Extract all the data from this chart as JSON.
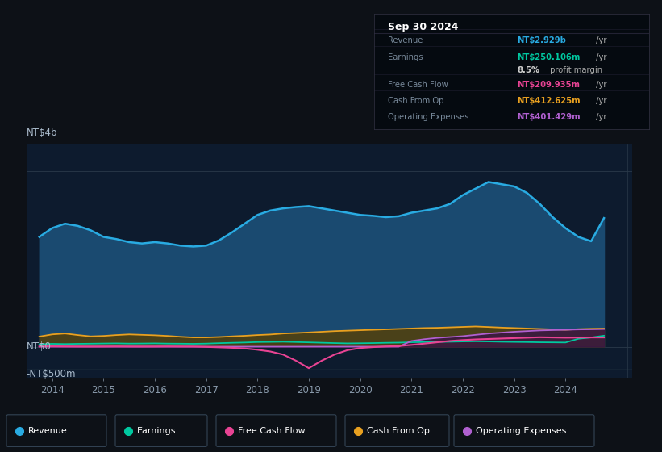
{
  "bg_color": "#0d1117",
  "plot_bg_color": "#0d1b2e",
  "title": "Sep 30 2024",
  "ytick_labels": [
    "NT$4b",
    "NT$0",
    "-NT$500m"
  ],
  "ytick_values": [
    4000,
    0,
    -500
  ],
  "ylim": [
    -700,
    4600
  ],
  "xlim": [
    2013.5,
    2025.3
  ],
  "xtick_years": [
    2014,
    2015,
    2016,
    2017,
    2018,
    2019,
    2020,
    2021,
    2022,
    2023,
    2024
  ],
  "legend_items": [
    {
      "label": "Revenue",
      "color": "#29abe2"
    },
    {
      "label": "Earnings",
      "color": "#00c8a0"
    },
    {
      "label": "Free Cash Flow",
      "color": "#e84393"
    },
    {
      "label": "Cash From Op",
      "color": "#e8a020"
    },
    {
      "label": "Operating Expenses",
      "color": "#b060d0"
    }
  ],
  "series": {
    "revenue": {
      "color": "#29abe2",
      "fill_color": "#1a4a70",
      "x": [
        2013.75,
        2014.0,
        2014.25,
        2014.5,
        2014.75,
        2015.0,
        2015.25,
        2015.5,
        2015.75,
        2016.0,
        2016.25,
        2016.5,
        2016.75,
        2017.0,
        2017.25,
        2017.5,
        2017.75,
        2018.0,
        2018.25,
        2018.5,
        2018.75,
        2019.0,
        2019.25,
        2019.5,
        2019.75,
        2020.0,
        2020.25,
        2020.5,
        2020.75,
        2021.0,
        2021.25,
        2021.5,
        2021.75,
        2022.0,
        2022.25,
        2022.5,
        2022.75,
        2023.0,
        2023.25,
        2023.5,
        2023.75,
        2024.0,
        2024.25,
        2024.5,
        2024.75
      ],
      "y": [
        2500,
        2700,
        2800,
        2750,
        2650,
        2500,
        2450,
        2380,
        2350,
        2380,
        2350,
        2300,
        2280,
        2300,
        2420,
        2600,
        2800,
        3000,
        3100,
        3150,
        3180,
        3200,
        3150,
        3100,
        3050,
        3000,
        2980,
        2950,
        2970,
        3050,
        3100,
        3150,
        3250,
        3450,
        3600,
        3750,
        3700,
        3650,
        3500,
        3250,
        2950,
        2700,
        2500,
        2400,
        2929
      ]
    },
    "earnings": {
      "color": "#00c8a0",
      "fill_color": "#003830",
      "x": [
        2013.75,
        2014.0,
        2014.25,
        2014.5,
        2014.75,
        2015.0,
        2015.25,
        2015.5,
        2015.75,
        2016.0,
        2016.25,
        2016.5,
        2016.75,
        2017.0,
        2017.25,
        2017.5,
        2017.75,
        2018.0,
        2018.25,
        2018.5,
        2018.75,
        2019.0,
        2019.25,
        2019.5,
        2019.75,
        2020.0,
        2020.25,
        2020.5,
        2020.75,
        2021.0,
        2021.25,
        2021.5,
        2021.75,
        2022.0,
        2022.25,
        2022.5,
        2022.75,
        2023.0,
        2023.25,
        2023.5,
        2023.75,
        2024.0,
        2024.25,
        2024.5,
        2024.75
      ],
      "y": [
        55,
        65,
        60,
        65,
        68,
        72,
        75,
        70,
        72,
        75,
        70,
        68,
        65,
        70,
        80,
        88,
        95,
        105,
        108,
        112,
        105,
        98,
        90,
        82,
        75,
        78,
        82,
        88,
        92,
        100,
        105,
        108,
        112,
        118,
        122,
        118,
        112,
        108,
        105,
        100,
        98,
        95,
        180,
        210,
        250
      ]
    },
    "free_cash_flow": {
      "color": "#e84393",
      "x": [
        2013.75,
        2014.0,
        2014.25,
        2014.5,
        2014.75,
        2015.0,
        2015.25,
        2015.5,
        2015.75,
        2016.0,
        2016.25,
        2016.5,
        2016.75,
        2017.0,
        2017.25,
        2017.5,
        2017.75,
        2018.0,
        2018.25,
        2018.5,
        2018.75,
        2019.0,
        2019.25,
        2019.5,
        2019.75,
        2020.0,
        2020.25,
        2020.5,
        2020.75,
        2021.0,
        2021.25,
        2021.5,
        2021.75,
        2022.0,
        2022.25,
        2022.5,
        2022.75,
        2023.0,
        2023.25,
        2023.5,
        2023.75,
        2024.0,
        2024.25,
        2024.5,
        2024.75
      ],
      "y": [
        5,
        8,
        5,
        3,
        2,
        3,
        5,
        3,
        2,
        3,
        5,
        3,
        2,
        -5,
        -15,
        -25,
        -40,
        -70,
        -110,
        -180,
        -320,
        -490,
        -320,
        -180,
        -80,
        -30,
        -10,
        5,
        15,
        40,
        70,
        100,
        130,
        150,
        165,
        175,
        185,
        195,
        205,
        215,
        210,
        205,
        208,
        210,
        210
      ]
    },
    "cash_from_op": {
      "color": "#e8a020",
      "fill_color": "#504010",
      "x": [
        2013.75,
        2014.0,
        2014.25,
        2014.5,
        2014.75,
        2015.0,
        2015.25,
        2015.5,
        2015.75,
        2016.0,
        2016.25,
        2016.5,
        2016.75,
        2017.0,
        2017.25,
        2017.5,
        2017.75,
        2018.0,
        2018.25,
        2018.5,
        2018.75,
        2019.0,
        2019.25,
        2019.5,
        2019.75,
        2020.0,
        2020.25,
        2020.5,
        2020.75,
        2021.0,
        2021.25,
        2021.5,
        2021.75,
        2022.0,
        2022.25,
        2022.5,
        2022.75,
        2023.0,
        2023.25,
        2023.5,
        2023.75,
        2024.0,
        2024.25,
        2024.5,
        2024.75
      ],
      "y": [
        230,
        280,
        300,
        265,
        235,
        245,
        265,
        280,
        270,
        260,
        245,
        225,
        210,
        210,
        220,
        235,
        248,
        265,
        278,
        300,
        312,
        325,
        340,
        355,
        365,
        375,
        385,
        395,
        405,
        415,
        425,
        430,
        440,
        450,
        460,
        448,
        435,
        425,
        415,
        405,
        395,
        385,
        400,
        408,
        413
      ]
    },
    "operating_expenses": {
      "color": "#b060d0",
      "fill_color": "#3a1545",
      "x": [
        2013.75,
        2014.0,
        2014.25,
        2014.5,
        2014.75,
        2015.0,
        2015.25,
        2015.5,
        2015.75,
        2016.0,
        2016.25,
        2016.5,
        2016.75,
        2017.0,
        2017.25,
        2017.5,
        2017.75,
        2018.0,
        2018.25,
        2018.5,
        2018.75,
        2019.0,
        2019.25,
        2019.5,
        2019.75,
        2020.0,
        2020.25,
        2020.5,
        2020.75,
        2021.0,
        2021.25,
        2021.5,
        2021.75,
        2022.0,
        2022.25,
        2022.5,
        2022.75,
        2023.0,
        2023.25,
        2023.5,
        2023.75,
        2024.0,
        2024.25,
        2024.5,
        2024.75
      ],
      "y": [
        0,
        0,
        0,
        0,
        0,
        0,
        0,
        0,
        0,
        0,
        0,
        0,
        0,
        0,
        0,
        0,
        0,
        0,
        0,
        0,
        0,
        0,
        0,
        0,
        0,
        0,
        0,
        0,
        0,
        130,
        170,
        200,
        220,
        240,
        270,
        300,
        320,
        340,
        355,
        370,
        378,
        385,
        392,
        396,
        401
      ]
    }
  }
}
